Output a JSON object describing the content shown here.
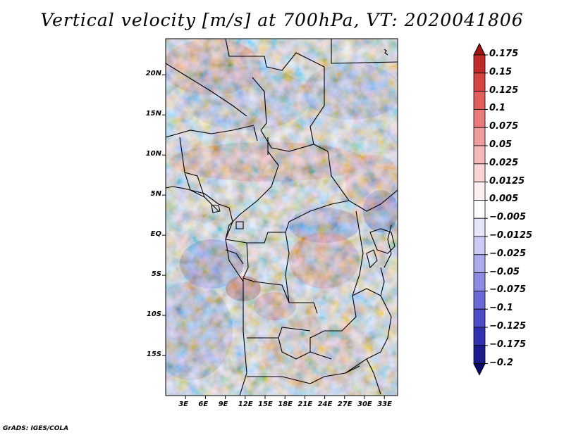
{
  "title": "Vertical velocity [m/s] at 700hPa, VT: 2020041806",
  "credit": "GrADS: IGES/COLA",
  "map": {
    "lon_range": [
      0,
      35
    ],
    "lat_range": [
      -20,
      24.5
    ],
    "lat_labels": [
      "20N",
      "15N",
      "10N",
      "5N",
      "EQ",
      "5S",
      "10S",
      "15S"
    ],
    "lat_values": [
      20,
      15,
      10,
      5,
      0,
      -5,
      -10,
      -15
    ],
    "lon_labels": [
      "3E",
      "6E",
      "9E",
      "12E",
      "15E",
      "18E",
      "21E",
      "24E",
      "27E",
      "30E",
      "33E"
    ],
    "lon_values": [
      3,
      6,
      9,
      12,
      15,
      18,
      21,
      24,
      27,
      30,
      33
    ]
  },
  "colorbar": {
    "labels": [
      "0.175",
      "0.15",
      "0.125",
      "0.1",
      "0.075",
      "0.05",
      "0.025",
      "0.0125",
      "0.005",
      "−0.005",
      "−0.0125",
      "−0.025",
      "−0.05",
      "−0.075",
      "−0.1",
      "−0.125",
      "−0.175",
      "−0.2"
    ],
    "colors": [
      "#a01616",
      "#c02a2a",
      "#d64343",
      "#e25e5e",
      "#ea7b7b",
      "#f19c9c",
      "#f6baba",
      "#fad5d5",
      "#fdf0f0",
      "#ffffff",
      "#e6e6fb",
      "#cacaf4",
      "#aaaaec",
      "#8b8be4",
      "#6b6bd8",
      "#4c4cc8",
      "#3030b0",
      "#1a1a8c",
      "#0c0c6e"
    ]
  }
}
